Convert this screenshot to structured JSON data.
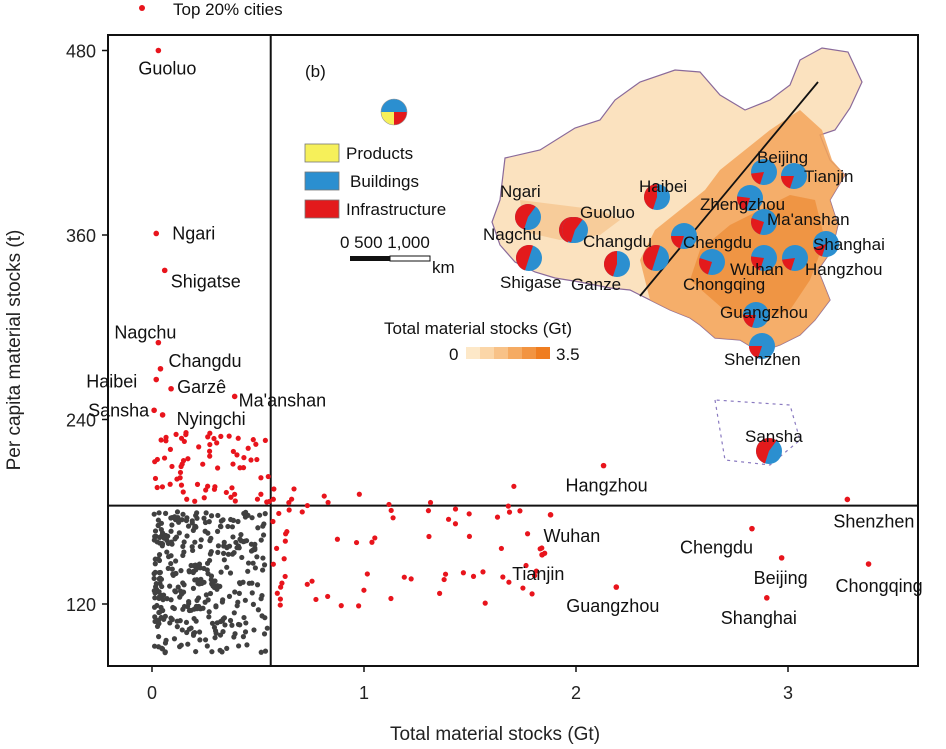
{
  "chart_data": {
    "type": "scatter",
    "panel_label": "(b)",
    "xlabel": "Total material stocks (Gt)",
    "ylabel": "Per capita material stocks (t)",
    "xlim": [
      -0.2,
      3.6
    ],
    "ylim": [
      75,
      490
    ],
    "xticks": [
      "0",
      "1",
      "2",
      "3"
    ],
    "xtick_values": [
      0,
      1,
      2,
      3
    ],
    "yticks": [
      "120",
      "240",
      "360",
      "480"
    ],
    "ytick_values": [
      120,
      240,
      360,
      480
    ],
    "threshold_x": 0.56,
    "threshold_y": 184,
    "legend": {
      "marker_label": "Top 20% cities"
    },
    "colors": {
      "top": "#e8141c",
      "other": "#404040"
    },
    "labeled_points": [
      {
        "name": "Guoluo",
        "x": 0.03,
        "y": 480
      },
      {
        "name": "Ngari",
        "x": 0.02,
        "y": 361
      },
      {
        "name": "Shigatse",
        "x": 0.06,
        "y": 337
      },
      {
        "name": "Nagchu",
        "x": 0.03,
        "y": 290
      },
      {
        "name": "Changdu",
        "x": 0.04,
        "y": 273
      },
      {
        "name": "Haibei",
        "x": 0.02,
        "y": 266
      },
      {
        "name": "Garzê",
        "x": 0.09,
        "y": 260
      },
      {
        "name": "Ma'anshan",
        "x": 0.39,
        "y": 255
      },
      {
        "name": "Sansha",
        "x": 0.01,
        "y": 246
      },
      {
        "name": "Nyingchi",
        "x": 0.05,
        "y": 243
      },
      {
        "name": "Hangzhou",
        "x": 2.13,
        "y": 210
      },
      {
        "name": "Shenzhen",
        "x": 3.28,
        "y": 188
      },
      {
        "name": "Wuhan",
        "x": 1.88,
        "y": 178
      },
      {
        "name": "Chengdu",
        "x": 2.83,
        "y": 169
      },
      {
        "name": "Beijing",
        "x": 2.97,
        "y": 150
      },
      {
        "name": "Chongqing",
        "x": 3.38,
        "y": 146
      },
      {
        "name": "Tianjin",
        "x": 1.84,
        "y": 152
      },
      {
        "name": "Guangzhou",
        "x": 2.19,
        "y": 131
      },
      {
        "name": "Shanghai",
        "x": 2.9,
        "y": 124
      }
    ],
    "inset_map": {
      "title": "Total material stocks (Gt)",
      "scale_min": "0",
      "scale_max": "3.5",
      "scalebar_text": "0  500 1,000",
      "scalebar_unit": "km",
      "pie_legend": [
        {
          "label": "Products",
          "color": "#f6f05a"
        },
        {
          "label": "Buildings",
          "color": "#2b8fd0"
        },
        {
          "label": "Infrastructure",
          "color": "#e31a1c"
        }
      ],
      "cities": [
        {
          "name": "Beijing",
          "share_infra": 0.18
        },
        {
          "name": "Tianjin",
          "share_infra": 0.2
        },
        {
          "name": "Haibei",
          "share_infra": 0.45
        },
        {
          "name": "Zhengzhou",
          "share_infra": 0.22
        },
        {
          "name": "Ngari",
          "share_infra": 0.55
        },
        {
          "name": "Ma'anshan",
          "share_infra": 0.25
        },
        {
          "name": "Guoluo",
          "share_infra": 0.5
        },
        {
          "name": "Nagchu",
          "share_infra": 0.55
        },
        {
          "name": "Changdu",
          "share_infra": 0.5
        },
        {
          "name": "Chengdu",
          "share_infra": 0.2
        },
        {
          "name": "Shanghai",
          "share_infra": 0.15
        },
        {
          "name": "Shigase",
          "share_infra": 0.5
        },
        {
          "name": "Ganze",
          "share_infra": 0.45
        },
        {
          "name": "Wuhan",
          "share_infra": 0.22
        },
        {
          "name": "Hangzhou",
          "share_infra": 0.18
        },
        {
          "name": "Chongqing",
          "share_infra": 0.25
        },
        {
          "name": "Guangzhou",
          "share_infra": 0.2
        },
        {
          "name": "Shenzhen",
          "share_infra": 0.2
        },
        {
          "name": "Sansha",
          "share_infra": 0.55
        }
      ]
    }
  }
}
